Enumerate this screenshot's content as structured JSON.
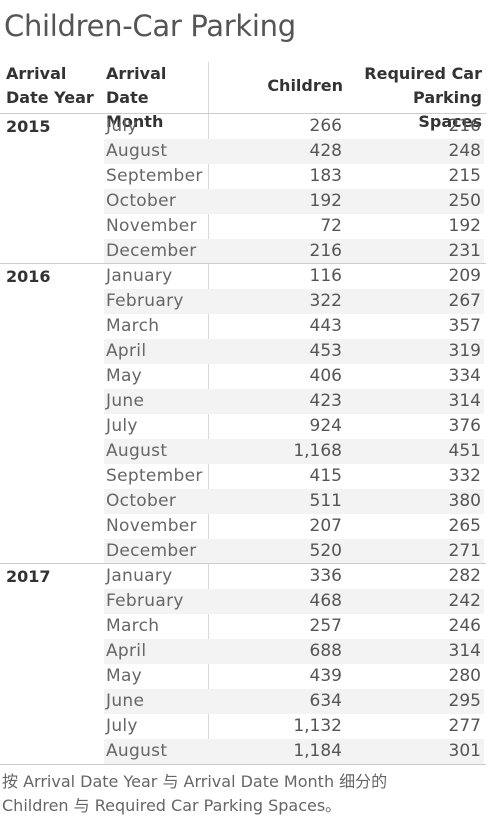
{
  "chart_data": {
    "type": "table",
    "title": "Children-Car Parking",
    "columns": [
      "Arrival Date Year",
      "Arrival Date Month",
      "Children",
      "Required Car Parking Spaces"
    ],
    "column_labels": {
      "year": [
        "Arrival",
        "Date Year"
      ],
      "month": [
        "Arrival Date",
        "Month"
      ],
      "children": "Children",
      "parking": [
        "Required Car",
        "Parking Spaces"
      ]
    },
    "groups": [
      {
        "year": "2015",
        "rows": [
          {
            "month": "July",
            "children": "266",
            "parking": "216"
          },
          {
            "month": "August",
            "children": "428",
            "parking": "248"
          },
          {
            "month": "September",
            "children": "183",
            "parking": "215"
          },
          {
            "month": "October",
            "children": "192",
            "parking": "250"
          },
          {
            "month": "November",
            "children": "72",
            "parking": "192"
          },
          {
            "month": "December",
            "children": "216",
            "parking": "231"
          }
        ]
      },
      {
        "year": "2016",
        "rows": [
          {
            "month": "January",
            "children": "116",
            "parking": "209"
          },
          {
            "month": "February",
            "children": "322",
            "parking": "267"
          },
          {
            "month": "March",
            "children": "443",
            "parking": "357"
          },
          {
            "month": "April",
            "children": "453",
            "parking": "319"
          },
          {
            "month": "May",
            "children": "406",
            "parking": "334"
          },
          {
            "month": "June",
            "children": "423",
            "parking": "314"
          },
          {
            "month": "July",
            "children": "924",
            "parking": "376"
          },
          {
            "month": "August",
            "children": "1,168",
            "parking": "451"
          },
          {
            "month": "September",
            "children": "415",
            "parking": "332"
          },
          {
            "month": "October",
            "children": "511",
            "parking": "380"
          },
          {
            "month": "November",
            "children": "207",
            "parking": "265"
          },
          {
            "month": "December",
            "children": "520",
            "parking": "271"
          }
        ]
      },
      {
        "year": "2017",
        "rows": [
          {
            "month": "January",
            "children": "336",
            "parking": "282"
          },
          {
            "month": "February",
            "children": "468",
            "parking": "242"
          },
          {
            "month": "March",
            "children": "257",
            "parking": "246"
          },
          {
            "month": "April",
            "children": "688",
            "parking": "314"
          },
          {
            "month": "May",
            "children": "439",
            "parking": "280"
          },
          {
            "month": "June",
            "children": "634",
            "parking": "295"
          },
          {
            "month": "July",
            "children": "1,132",
            "parking": "277"
          },
          {
            "month": "August",
            "children": "1,184",
            "parking": "301"
          }
        ]
      }
    ],
    "caption": [
      "按 Arrival Date Year 与 Arrival Date Month 细分的",
      "Children 与 Required Car Parking Spaces。"
    ]
  }
}
